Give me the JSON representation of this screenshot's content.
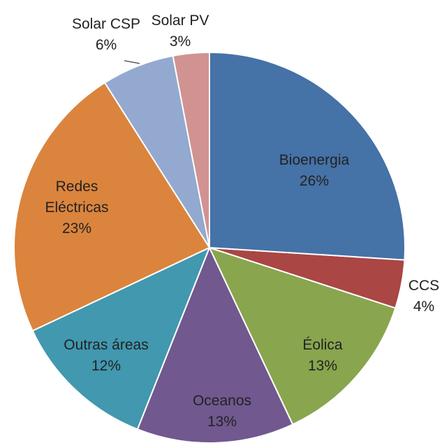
{
  "chart_data": {
    "type": "pie",
    "categories": [
      "Bioenergia",
      "CCS",
      "Éolica",
      "Oceanos",
      "Outras áreas",
      "Redes Eléctricas",
      "Solar CSP",
      "Solar PV"
    ],
    "values": [
      26,
      4,
      13,
      13,
      12,
      23,
      6,
      3
    ],
    "value_labels": [
      "26%",
      "4%",
      "13%",
      "13%",
      "12%",
      "23%",
      "6%",
      "3%"
    ],
    "colors": [
      "#4572a7",
      "#aa4643",
      "#89a54e",
      "#71588f",
      "#4198af",
      "#db843d",
      "#93a9cf",
      "#d19392"
    ]
  }
}
